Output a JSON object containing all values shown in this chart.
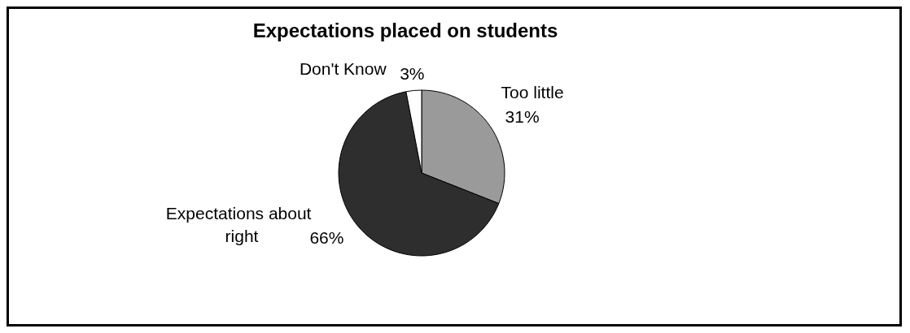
{
  "chart_data": {
    "type": "pie",
    "title": "Expectations placed on students",
    "categories": [
      "Too little",
      "Expectations about right",
      "Don't Know"
    ],
    "values": [
      31,
      66,
      3
    ],
    "value_labels": [
      "31%",
      "66%",
      "3%"
    ],
    "colors": [
      "#9a9a9a",
      "#2e2e2e",
      "#ffffff"
    ],
    "legend": false
  }
}
